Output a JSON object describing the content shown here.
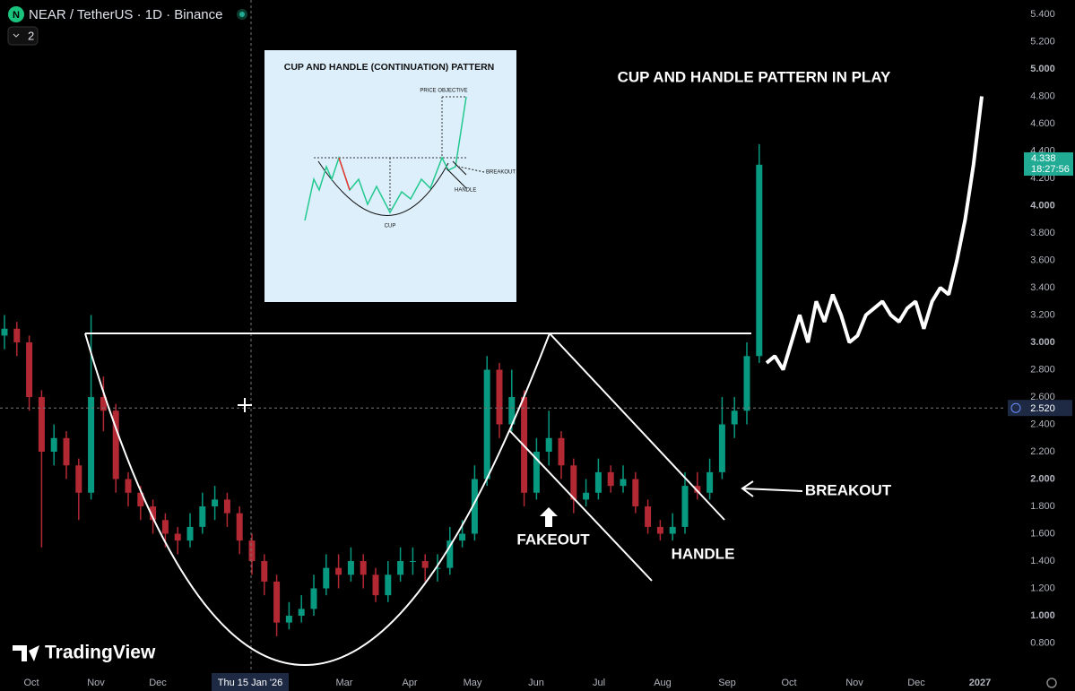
{
  "chart_data": {
    "type": "candlestick",
    "title": "NEAR / TetherUS · 1D · Binance",
    "logo": "N",
    "badge": "2",
    "watermark": "TradingView",
    "up_color": "#089981",
    "down_color": "#b22833",
    "open": [
      3.05,
      3.1,
      3.0,
      2.6,
      2.2,
      2.3,
      2.1,
      1.9,
      2.6,
      2.5,
      2.0,
      1.9,
      1.8,
      1.7,
      1.6,
      1.55,
      1.65,
      1.8,
      1.85,
      1.75,
      1.55,
      1.4,
      1.25,
      0.95,
      1.0,
      1.05,
      1.2,
      1.35,
      1.3,
      1.4,
      1.3,
      1.15,
      1.3,
      1.4,
      1.4,
      1.35,
      1.35,
      1.55,
      1.6,
      2.0,
      2.8,
      2.4,
      2.6,
      1.9,
      2.2,
      2.3,
      2.1,
      1.85,
      1.9,
      2.05,
      1.95,
      2.0,
      1.8,
      1.65,
      1.6,
      1.65,
      1.95,
      1.9,
      2.05,
      2.4,
      2.5,
      2.9
    ],
    "high": [
      3.2,
      3.15,
      3.05,
      2.65,
      2.4,
      2.35,
      2.15,
      3.2,
      2.75,
      2.55,
      2.05,
      1.95,
      1.85,
      1.75,
      1.65,
      1.75,
      1.9,
      1.95,
      1.9,
      1.8,
      1.6,
      1.45,
      1.3,
      1.1,
      1.15,
      1.3,
      1.45,
      1.45,
      1.5,
      1.45,
      1.35,
      1.4,
      1.5,
      1.5,
      1.45,
      1.45,
      1.65,
      1.7,
      2.1,
      2.9,
      2.85,
      2.8,
      2.65,
      2.3,
      2.5,
      2.35,
      2.15,
      2.0,
      2.15,
      2.1,
      2.1,
      2.05,
      1.85,
      1.7,
      1.75,
      2.05,
      2.05,
      2.15,
      2.6,
      2.6,
      3.0,
      4.45
    ],
    "low": [
      2.95,
      2.9,
      2.5,
      1.5,
      2.1,
      2.0,
      1.7,
      1.85,
      2.35,
      1.9,
      1.8,
      1.7,
      1.6,
      1.5,
      1.45,
      1.5,
      1.6,
      1.7,
      1.65,
      1.45,
      1.3,
      1.15,
      0.85,
      0.9,
      0.95,
      1.0,
      1.15,
      1.2,
      1.25,
      1.2,
      1.1,
      1.1,
      1.25,
      1.3,
      1.25,
      1.25,
      1.3,
      1.5,
      1.55,
      1.95,
      2.3,
      2.35,
      1.8,
      1.85,
      2.1,
      2.0,
      1.75,
      1.8,
      1.85,
      1.9,
      1.9,
      1.75,
      1.6,
      1.55,
      1.55,
      1.6,
      1.85,
      1.85,
      2.0,
      2.3,
      2.4,
      2.85
    ],
    "close": [
      3.1,
      3.0,
      2.6,
      2.2,
      2.3,
      2.1,
      1.9,
      2.6,
      2.5,
      2.0,
      1.9,
      1.8,
      1.7,
      1.6,
      1.55,
      1.65,
      1.8,
      1.85,
      1.75,
      1.55,
      1.4,
      1.25,
      0.95,
      1.0,
      1.05,
      1.2,
      1.35,
      1.3,
      1.4,
      1.3,
      1.15,
      1.3,
      1.4,
      1.4,
      1.35,
      1.35,
      1.55,
      1.6,
      2.0,
      2.8,
      2.4,
      2.6,
      1.9,
      2.2,
      2.3,
      2.1,
      1.85,
      1.9,
      2.05,
      1.95,
      2.0,
      1.8,
      1.65,
      1.6,
      1.65,
      1.95,
      1.9,
      2.05,
      2.4,
      2.5,
      2.9,
      4.3
    ],
    "projection": {
      "color": "#ffffff",
      "values": [
        2.85,
        2.9,
        2.8,
        3.0,
        3.2,
        3.0,
        3.3,
        3.15,
        3.35,
        3.2,
        3.0,
        3.05,
        3.2,
        3.25,
        3.3,
        3.2,
        3.15,
        3.25,
        3.3,
        3.1,
        3.3,
        3.4,
        3.35,
        3.6,
        3.9,
        4.3,
        4.8
      ]
    },
    "xtick_labels": [
      "Oct",
      "Nov",
      "Dec",
      "Mar",
      "Apr",
      "May",
      "Jun",
      "Jul",
      "Aug",
      "Sep",
      "Oct",
      "Nov",
      "Dec",
      "2027"
    ],
    "ylim": [
      0.587,
      5.505
    ],
    "yticks": [
      {
        "value": 0.8,
        "label": "0.800"
      },
      {
        "value": 1,
        "label": "1.000"
      },
      {
        "value": 1.2,
        "label": "1.200"
      },
      {
        "value": 1.4,
        "label": "1.400"
      },
      {
        "value": 1.6,
        "label": "1.600"
      },
      {
        "value": 1.8,
        "label": "1.800"
      },
      {
        "value": 2,
        "label": "2.000"
      },
      {
        "value": 2.2,
        "label": "2.200"
      },
      {
        "value": 2.4,
        "label": "2.400"
      },
      {
        "value": 2.6,
        "label": "2.600"
      },
      {
        "value": 2.8,
        "label": "2.800"
      },
      {
        "value": 3,
        "label": "3.000"
      },
      {
        "value": 3.2,
        "label": "3.200"
      },
      {
        "value": 3.4,
        "label": "3.400"
      },
      {
        "value": 3.6,
        "label": "3.600"
      },
      {
        "value": 3.8,
        "label": "3.800"
      },
      {
        "value": 4,
        "label": "4.000"
      },
      {
        "value": 4.2,
        "label": "4.200"
      },
      {
        "value": 4.4,
        "label": "4.400"
      },
      {
        "value": 4.6,
        "label": "4.600"
      },
      {
        "value": 4.8,
        "label": "4.800"
      },
      {
        "value": 5,
        "label": "5.000"
      },
      {
        "value": 5.2,
        "label": "5.200"
      },
      {
        "value": 5.4,
        "label": "5.400"
      }
    ],
    "last_price": {
      "value": 4.338,
      "countdown": "18:27:56",
      "color": "#22ab94"
    },
    "crosshair": {
      "value": 2.52,
      "label": "2.520",
      "date": "Thu 15 Jan '26"
    },
    "annotations": {
      "headline": "CUP AND HANDLE PATTERN IN PLAY",
      "fakeout": "FAKEOUT",
      "handle": "HANDLE",
      "breakout": "BREAKOUT"
    },
    "inset": {
      "title": "CUP AND HANDLE (CONTINUATION) PATTERN",
      "price_objective": "PRICE OBJECTIVE",
      "breakout": "BREAKOUT",
      "handle": "HANDLE",
      "cup": "CUP"
    }
  }
}
